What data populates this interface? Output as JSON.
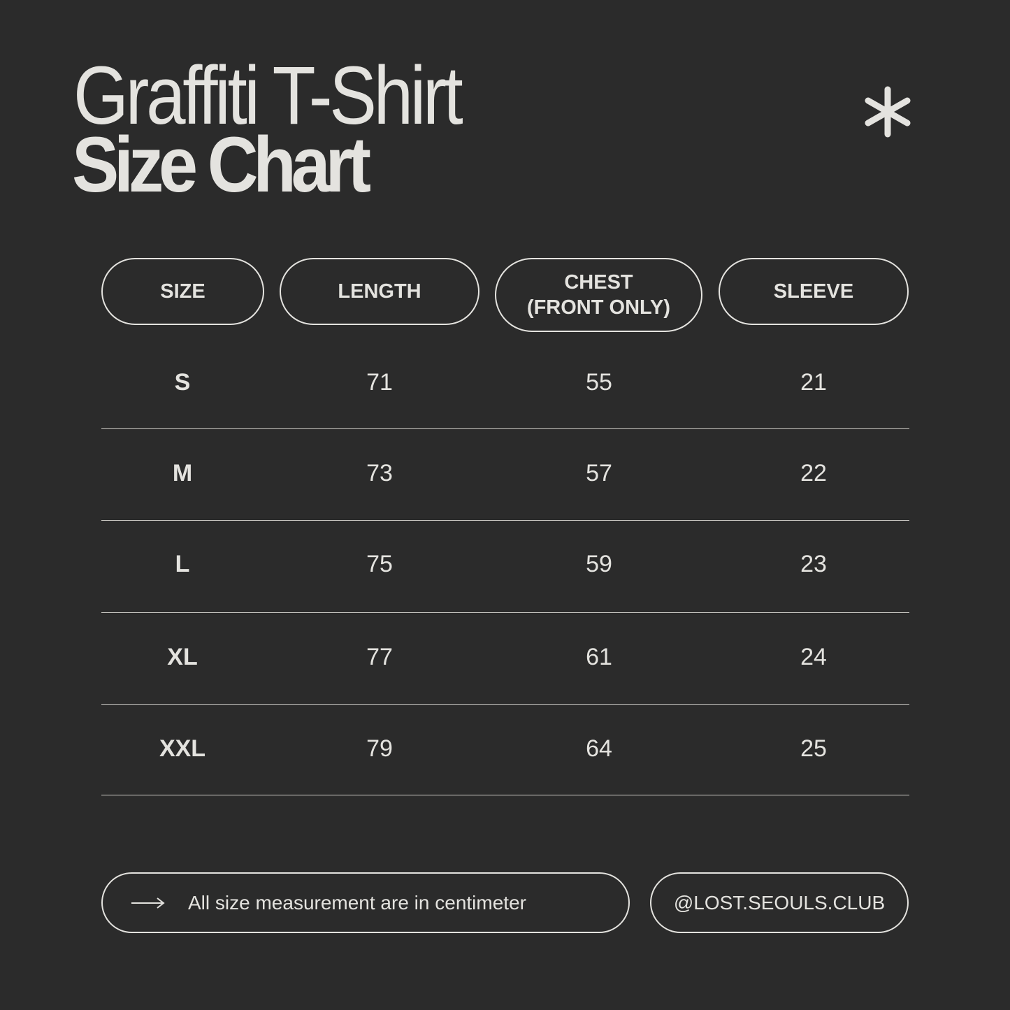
{
  "title": {
    "line1": "Graffiti T-Shirt",
    "line2": "Size Chart",
    "icon": "asterisk-icon"
  },
  "colors": {
    "background": "#2b2b2b",
    "foreground": "#e4e3df"
  },
  "table": {
    "headers": [
      "SIZE",
      "LENGTH",
      "CHEST\n(FRONT ONLY)",
      "SLEEVE"
    ],
    "rows": [
      [
        "S",
        "71",
        "55",
        "21"
      ],
      [
        "M",
        "73",
        "57",
        "22"
      ],
      [
        "L",
        "75",
        "59",
        "23"
      ],
      [
        "XL",
        "77",
        "61",
        "24"
      ],
      [
        "XXL",
        "79",
        "64",
        "25"
      ]
    ]
  },
  "footer": {
    "note": "All size measurement are in centimeter",
    "note_icon": "arrow-right-icon",
    "handle": "@LOST.SEOULS.CLUB"
  }
}
